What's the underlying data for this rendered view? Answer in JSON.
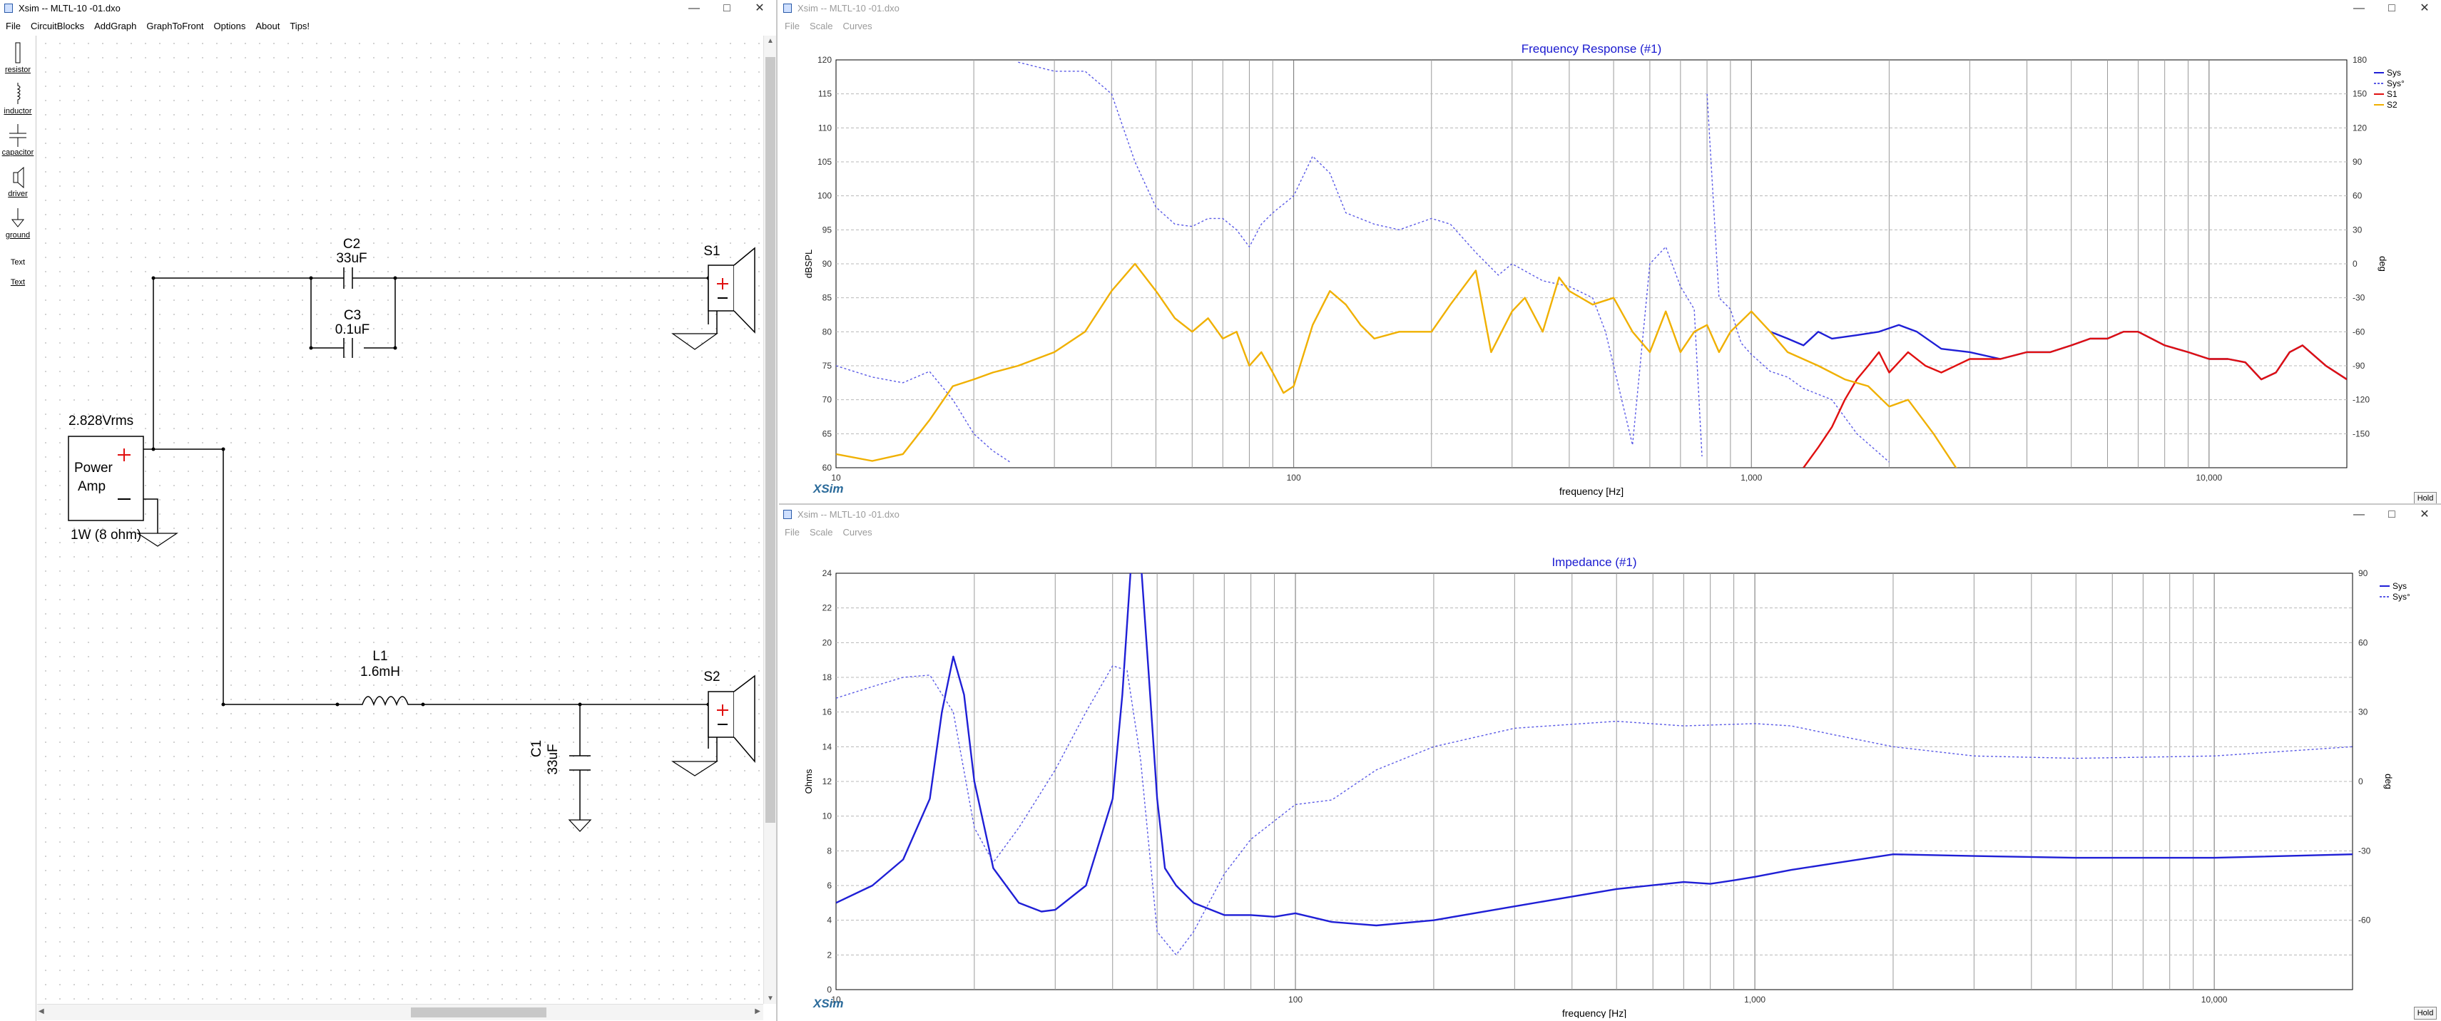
{
  "circuit_window": {
    "title": "Xsim -- MLTL-10 -01.dxo",
    "menu": [
      "File",
      "CircuitBlocks",
      "AddGraph",
      "GraphToFront",
      "Options",
      "About",
      "Tips!"
    ],
    "palette": [
      "resistor",
      "inductor",
      "capacitor",
      "driver",
      "ground",
      "Text",
      "Text"
    ],
    "components": {
      "c2_name": "C2",
      "c2_value": "33uF",
      "c3_name": "C3",
      "c3_value": "0.1uF",
      "l1_name": "L1",
      "l1_value": "1.6mH",
      "c1_name": "C1",
      "c1_value": "33uF",
      "s1_name": "S1",
      "s2_name": "S2",
      "amp_voltage": "2.828Vrms",
      "amp_label_1": "Power",
      "amp_label_2": "Amp",
      "amp_power": "1W (8 ohm)"
    }
  },
  "fr_window": {
    "title": "Xsim -- MLTL-10 -01.dxo",
    "menu": [
      "File",
      "Scale",
      "Curves"
    ],
    "hold_label": "Hold",
    "brand": "XSim"
  },
  "imp_window": {
    "title": "Xsim -- MLTL-10 -01.dxo",
    "menu": [
      "File",
      "Scale",
      "Curves"
    ],
    "hold_label": "Hold",
    "brand": "XSim"
  },
  "colors": {
    "sys": "#1f1fd6",
    "sys_phase": "#5a5ae6",
    "s1": "#e01010",
    "s2": "#f0b000",
    "title": "#1a1ad0"
  },
  "chart_data": [
    {
      "type": "line",
      "title": "Frequency Response (#1)",
      "xlabel": "frequency [Hz]",
      "ylabel": "dBSPL",
      "y2label": "deg",
      "xscale": "log",
      "xlim": [
        10,
        20000
      ],
      "ylim": [
        60,
        120
      ],
      "y2lim": [
        -180,
        180
      ],
      "x_ticks": [
        "10",
        "100",
        "1,000",
        "10,000"
      ],
      "y_ticks": [
        "60",
        "65",
        "70",
        "75",
        "80",
        "85",
        "90",
        "95",
        "100",
        "105",
        "110",
        "115",
        "120"
      ],
      "y2_ticks": [
        "-150",
        "-120",
        "-90",
        "-60",
        "-30",
        "0",
        "30",
        "60",
        "90",
        "120",
        "150",
        "180"
      ],
      "legend": [
        "Sys",
        "Sys°",
        "S1",
        "S2"
      ],
      "legend_position": "top-right",
      "grid": true,
      "series": [
        {
          "name": "Sys",
          "axis": "left",
          "x": [
            1100,
            1200,
            1300,
            1400,
            1500,
            1700,
            1900,
            2100,
            2300,
            2600,
            3000,
            3500,
            4000,
            4500,
            5000,
            5500,
            6000,
            6500,
            7000,
            8000,
            9000,
            10000,
            11000,
            12000,
            13000,
            14000,
            15000,
            16000,
            18000,
            20000
          ],
          "y": [
            80,
            79,
            78,
            80,
            79,
            79.5,
            80,
            81,
            80,
            77.5,
            77,
            76,
            77,
            77,
            78,
            79,
            79,
            80,
            80,
            78,
            77,
            76,
            76,
            75.5,
            73,
            74,
            77,
            78,
            75,
            73
          ]
        },
        {
          "name": "Sys°",
          "axis": "right",
          "x": [
            10,
            12,
            14,
            16,
            18,
            20,
            22,
            24,
            25,
            30,
            35,
            40,
            45,
            50,
            55,
            60,
            65,
            70,
            75,
            80,
            85,
            90,
            100,
            110,
            120,
            130,
            150,
            170,
            200,
            220,
            250,
            280,
            300,
            350,
            400,
            450,
            480,
            500,
            550,
            600,
            650,
            700,
            750,
            780,
            800,
            850,
            900,
            950,
            1000,
            1100,
            1200,
            1300,
            1500,
            1700,
            2000
          ],
          "y": [
            -90,
            -100,
            -105,
            -95,
            -120,
            -150,
            -165,
            -175,
            178,
            170,
            170,
            150,
            90,
            50,
            35,
            33,
            40,
            40,
            30,
            15,
            35,
            45,
            60,
            95,
            80,
            45,
            35,
            30,
            40,
            35,
            10,
            -10,
            0,
            -15,
            -20,
            -30,
            -60,
            -90,
            -160,
            0,
            15,
            -20,
            -40,
            -170,
            150,
            -30,
            -40,
            -70,
            -80,
            -95,
            -100,
            -110,
            -120,
            -150,
            -175
          ]
        },
        {
          "name": "S1",
          "axis": "left",
          "x": [
            1300,
            1400,
            1500,
            1600,
            1700,
            1800,
            1900,
            2000,
            2200,
            2400,
            2600,
            3000,
            3500,
            4000,
            4500,
            5000,
            5500,
            6000,
            6500,
            7000,
            8000,
            9000,
            10000,
            11000,
            12000,
            13000,
            14000,
            15000,
            16000,
            18000,
            20000
          ],
          "y": [
            60,
            63,
            66,
            70,
            73,
            75,
            77,
            74,
            77,
            75,
            74,
            76,
            76,
            77,
            77,
            78,
            79,
            79,
            80,
            80,
            78,
            77,
            76,
            76,
            75.5,
            73,
            74,
            77,
            78,
            75,
            73
          ]
        },
        {
          "name": "S2",
          "axis": "left",
          "x": [
            10,
            12,
            14,
            16,
            18,
            20,
            22,
            25,
            30,
            35,
            40,
            45,
            50,
            55,
            60,
            65,
            70,
            75,
            80,
            85,
            90,
            95,
            100,
            110,
            120,
            130,
            140,
            150,
            170,
            200,
            220,
            250,
            270,
            300,
            320,
            350,
            380,
            400,
            450,
            500,
            550,
            600,
            650,
            700,
            750,
            800,
            850,
            900,
            1000,
            1100,
            1200,
            1400,
            1600,
            1800,
            2000,
            2200,
            2500,
            2800,
            3000
          ],
          "y": [
            62,
            61,
            62,
            67,
            72,
            73,
            74,
            75,
            77,
            80,
            86,
            90,
            86,
            82,
            80,
            82,
            79,
            80,
            75,
            77,
            74,
            71,
            72,
            81,
            86,
            84,
            81,
            79,
            80,
            80,
            84,
            89,
            77,
            83,
            85,
            80,
            88,
            86,
            84,
            85,
            80,
            77,
            83,
            77,
            80,
            81,
            77,
            80,
            83,
            80,
            77,
            75,
            73,
            72,
            69,
            70,
            65,
            60,
            58
          ]
        }
      ]
    },
    {
      "type": "line",
      "title": "Impedance (#1)",
      "xlabel": "frequency [Hz]",
      "ylabel": "Ohms",
      "y2label": "deg",
      "xscale": "log",
      "xlim": [
        10,
        20000
      ],
      "ylim": [
        0,
        24
      ],
      "y2lim": [
        -90,
        90
      ],
      "x_ticks": [
        "10",
        "100",
        "1,000",
        "10,000"
      ],
      "y_ticks": [
        "0",
        "2",
        "4",
        "6",
        "8",
        "10",
        "12",
        "14",
        "16",
        "18",
        "20",
        "22",
        "24"
      ],
      "y2_ticks": [
        "-60",
        "-30",
        "0",
        "30",
        "60",
        "90"
      ],
      "legend": [
        "Sys",
        "Sys°"
      ],
      "legend_position": "top-right",
      "grid": true,
      "series": [
        {
          "name": "Sys",
          "axis": "left",
          "x": [
            10,
            12,
            14,
            16,
            17,
            18,
            19,
            20,
            22,
            25,
            28,
            30,
            35,
            40,
            42,
            44,
            46,
            48,
            50,
            52,
            55,
            60,
            70,
            80,
            90,
            100,
            120,
            150,
            200,
            300,
            500,
            700,
            800,
            900,
            1000,
            1200,
            1500,
            2000,
            3000,
            5000,
            10000,
            20000
          ],
          "y": [
            5,
            6,
            7.5,
            11,
            16,
            19.2,
            17,
            12,
            7,
            5,
            4.5,
            4.6,
            6,
            11,
            17,
            25,
            25,
            18,
            11,
            7,
            6,
            5,
            4.3,
            4.3,
            4.2,
            4.4,
            3.9,
            3.7,
            4,
            4.8,
            5.8,
            6.2,
            6.1,
            6.3,
            6.5,
            6.9,
            7.3,
            7.8,
            7.7,
            7.6,
            7.6,
            7.8
          ]
        },
        {
          "name": "Sys°",
          "axis": "right",
          "x": [
            10,
            12,
            14,
            16,
            18,
            20,
            22,
            25,
            30,
            35,
            40,
            43,
            46,
            50,
            55,
            60,
            70,
            80,
            100,
            120,
            150,
            200,
            300,
            500,
            700,
            1000,
            1200,
            1500,
            2000,
            3000,
            5000,
            10000,
            20000
          ],
          "y": [
            36,
            41,
            45,
            46,
            30,
            -20,
            -35,
            -20,
            5,
            30,
            50,
            48,
            10,
            -65,
            -75,
            -65,
            -40,
            -25,
            -10,
            -8,
            5,
            15,
            23,
            26,
            24,
            25,
            24,
            20,
            15,
            11,
            10,
            11,
            15
          ]
        }
      ]
    }
  ]
}
